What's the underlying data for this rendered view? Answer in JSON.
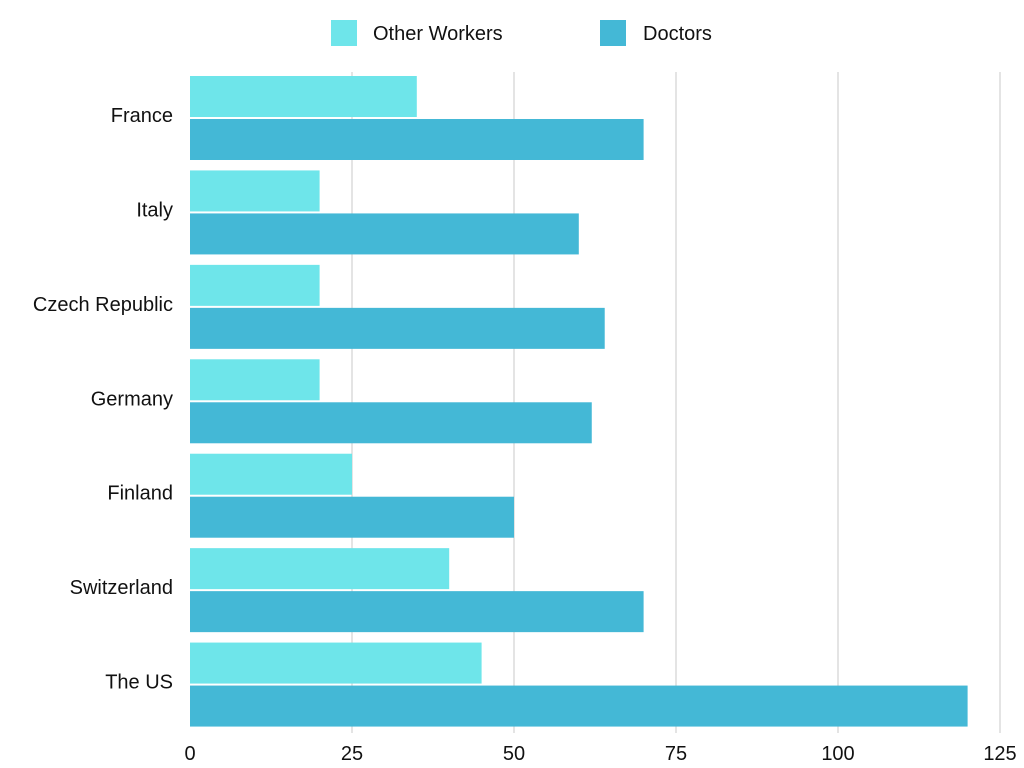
{
  "chart_data": {
    "type": "bar",
    "orientation": "horizontal",
    "title": "",
    "xlabel": "",
    "ylabel": "",
    "categories": [
      "France",
      "Italy",
      "Czech Republic",
      "Germany",
      "Finland",
      "Switzerland",
      "The US"
    ],
    "series": [
      {
        "name": "Other Workers",
        "color": "#6ee5ea",
        "values": [
          35,
          20,
          20,
          20,
          25,
          40,
          45
        ]
      },
      {
        "name": "Doctors",
        "color": "#44b8d6",
        "values": [
          70,
          60,
          64,
          62,
          50,
          70,
          120
        ]
      }
    ],
    "xlim": [
      0,
      125
    ],
    "x_ticks": [
      0,
      25,
      50,
      75,
      100,
      125
    ],
    "x_tick_labels": [
      "0",
      "25",
      "50",
      "75",
      "100",
      "125"
    ],
    "grid": {
      "vertical": true,
      "horizontal": false
    },
    "legend": {
      "position": "top-center"
    }
  }
}
